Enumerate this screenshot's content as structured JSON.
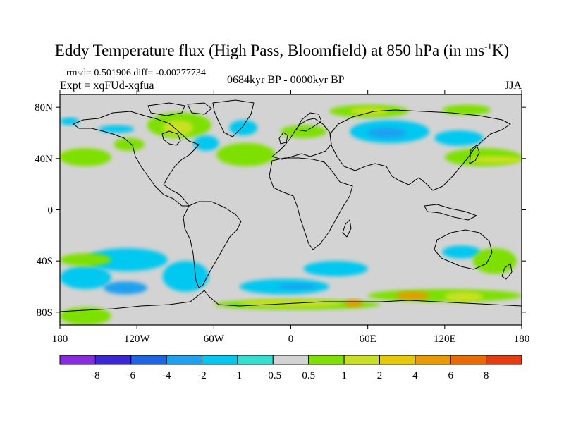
{
  "title": {
    "main": "Eddy Temperature flux (High Pass, Bloomfield) at 850 hPa (in ms",
    "sup": "-1",
    "tail": "K)"
  },
  "stats": {
    "rmsd_line": "rmsd= 0.501906 diff= -0.00277734",
    "expt_line": "Expt = xqFUd-xqfua"
  },
  "period": "0684kyr BP - 0000kyr BP",
  "season": "JJA",
  "map": {
    "type": "filled-contour world map",
    "projection": "cylindrical-equidistant",
    "lon_range": [
      -180,
      180
    ],
    "lat_range": [
      -90,
      90
    ],
    "background_color": "#d3d3d3",
    "lat_ticks": [
      {
        "value": 80,
        "label": "80N"
      },
      {
        "value": 40,
        "label": "40N"
      },
      {
        "value": 0,
        "label": "0"
      },
      {
        "value": -40,
        "label": "40S"
      },
      {
        "value": -80,
        "label": "80S"
      }
    ],
    "lon_ticks": [
      {
        "value": -180,
        "label": "180"
      },
      {
        "value": -120,
        "label": "120W"
      },
      {
        "value": -60,
        "label": "60W"
      },
      {
        "value": 0,
        "label": "0"
      },
      {
        "value": 60,
        "label": "60E"
      },
      {
        "value": 120,
        "label": "120E"
      },
      {
        "value": 180,
        "label": "180"
      }
    ]
  },
  "colorbar": {
    "colors": [
      "#8a2be2",
      "#3a28d8",
      "#1e64e6",
      "#1ea0f0",
      "#00c8f0",
      "#30e0d0",
      "#d3d3d3",
      "#7ee000",
      "#c8e020",
      "#e8c800",
      "#e89a00",
      "#e86a00",
      "#e83a10"
    ],
    "labels": [
      "-8",
      "-6",
      "-4",
      "-2",
      "-1",
      "-0.5",
      "0.5",
      "1",
      "2",
      "4",
      "6",
      "8"
    ]
  },
  "anomaly_regions": [
    {
      "color": "#00c8f0",
      "lon": [
        -180,
        -165
      ],
      "lat": [
        66,
        72
      ]
    },
    {
      "color": "#7ee000",
      "lon": [
        -112,
        -62
      ],
      "lat": [
        56,
        76
      ]
    },
    {
      "color": "#c8e020",
      "lon": [
        -100,
        -76
      ],
      "lat": [
        58,
        70
      ]
    },
    {
      "color": "#00c8f0",
      "lon": [
        -150,
        -122
      ],
      "lat": [
        60,
        66
      ]
    },
    {
      "color": "#00c8f0",
      "lon": [
        -76,
        -56
      ],
      "lat": [
        46,
        58
      ]
    },
    {
      "color": "#7ee000",
      "lon": [
        -138,
        -114
      ],
      "lat": [
        46,
        56
      ]
    },
    {
      "color": "#c8e020",
      "lon": [
        -50,
        -16
      ],
      "lat": [
        38,
        50
      ]
    },
    {
      "color": "#7ee000",
      "lon": [
        -58,
        -12
      ],
      "lat": [
        34,
        52
      ]
    },
    {
      "color": "#c8e020",
      "lon": [
        -180,
        -150
      ],
      "lat": [
        38,
        46
      ]
    },
    {
      "color": "#7ee000",
      "lon": [
        -180,
        -140
      ],
      "lat": [
        34,
        48
      ]
    },
    {
      "color": "#00c8f0",
      "lon": [
        -48,
        -26
      ],
      "lat": [
        58,
        70
      ]
    },
    {
      "color": "#7ee000",
      "lon": [
        30,
        92
      ],
      "lat": [
        72,
        82
      ]
    },
    {
      "color": "#c8e020",
      "lon": [
        46,
        76
      ],
      "lat": [
        74,
        80
      ]
    },
    {
      "color": "#7ee000",
      "lon": [
        118,
        156
      ],
      "lat": [
        74,
        82
      ]
    },
    {
      "color": "#00c8f0",
      "lon": [
        46,
        108
      ],
      "lat": [
        52,
        70
      ]
    },
    {
      "color": "#1ea0f0",
      "lon": [
        60,
        90
      ],
      "lat": [
        56,
        64
      ]
    },
    {
      "color": "#00c8f0",
      "lon": [
        112,
        150
      ],
      "lat": [
        50,
        62
      ]
    },
    {
      "color": "#7ee000",
      "lon": [
        120,
        180
      ],
      "lat": [
        34,
        48
      ]
    },
    {
      "color": "#c8e020",
      "lon": [
        140,
        180
      ],
      "lat": [
        36,
        42
      ]
    },
    {
      "color": "#7ee000",
      "lon": [
        -8,
        28
      ],
      "lat": [
        56,
        66
      ]
    },
    {
      "color": "#00c8f0",
      "lon": [
        -160,
        -96
      ],
      "lat": [
        -48,
        -30
      ]
    },
    {
      "color": "#00c8f0",
      "lon": [
        -180,
        -140
      ],
      "lat": [
        -62,
        -44
      ]
    },
    {
      "color": "#1ea0f0",
      "lon": [
        -146,
        -112
      ],
      "lat": [
        -66,
        -56
      ]
    },
    {
      "color": "#00c8f0",
      "lon": [
        -100,
        -64
      ],
      "lat": [
        -64,
        -40
      ]
    },
    {
      "color": "#00c8f0",
      "lon": [
        -40,
        30
      ],
      "lat": [
        -66,
        -54
      ]
    },
    {
      "color": "#1ea0f0",
      "lon": [
        -10,
        20
      ],
      "lat": [
        -62,
        -58
      ]
    },
    {
      "color": "#00c8f0",
      "lon": [
        10,
        60
      ],
      "lat": [
        -52,
        -40
      ]
    },
    {
      "color": "#00c8f0",
      "lon": [
        118,
        148
      ],
      "lat": [
        -38,
        -28
      ]
    },
    {
      "color": "#7ee000",
      "lon": [
        142,
        176
      ],
      "lat": [
        -50,
        -30
      ]
    },
    {
      "color": "#7ee000",
      "lon": [
        -180,
        -140
      ],
      "lat": [
        -44,
        -34
      ]
    },
    {
      "color": "#7ee000",
      "lon": [
        -60,
        70
      ],
      "lat": [
        -78,
        -70
      ]
    },
    {
      "color": "#c8e020",
      "lon": [
        -40,
        40
      ],
      "lat": [
        -76,
        -70
      ]
    },
    {
      "color": "#e89a00",
      "lon": [
        42,
        56
      ],
      "lat": [
        -76,
        -70
      ]
    },
    {
      "color": "#7ee000",
      "lon": [
        60,
        180
      ],
      "lat": [
        -72,
        -62
      ]
    },
    {
      "color": "#e89a00",
      "lon": [
        82,
        108
      ],
      "lat": [
        -70,
        -64
      ]
    },
    {
      "color": "#c8e020",
      "lon": [
        120,
        150
      ],
      "lat": [
        -72,
        -64
      ]
    },
    {
      "color": "#7ee000",
      "lon": [
        -180,
        -140
      ],
      "lat": [
        -90,
        -76
      ]
    }
  ]
}
